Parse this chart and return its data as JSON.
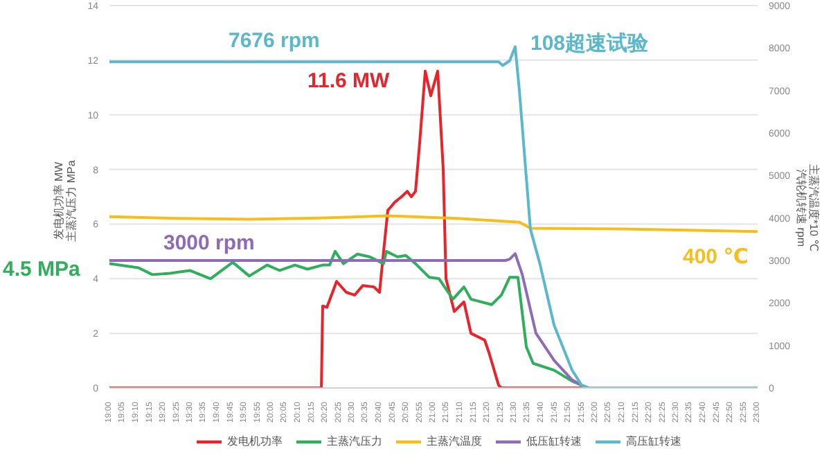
{
  "chart_data": {
    "type": "line",
    "ylabel": "发电机功率 MW\n主蒸汽压力 MPa",
    "y2label": "主蒸汽温度*10 ℃\n汽轮机转速 rpm",
    "xlim": [
      19,
      23
    ],
    "ylim": [
      0,
      14
    ],
    "yticks": [
      0,
      2,
      4,
      6,
      8,
      10,
      12,
      14
    ],
    "y2lim": [
      0,
      9000
    ],
    "y2ticks": [
      0,
      1000,
      2000,
      3000,
      4000,
      5000,
      6000,
      7000,
      8000,
      9000
    ],
    "xticks": [
      {
        "value": 19,
        "label": "19:00"
      },
      {
        "value": 19.0833,
        "label": "19:05"
      },
      {
        "value": 19.1667,
        "label": "19:10"
      },
      {
        "value": 19.25,
        "label": "19:15"
      },
      {
        "value": 19.3333,
        "label": "19:20"
      },
      {
        "value": 19.4167,
        "label": "19:25"
      },
      {
        "value": 19.5,
        "label": "19:30"
      },
      {
        "value": 19.5833,
        "label": "19:35"
      },
      {
        "value": 19.6667,
        "label": "19:40"
      },
      {
        "value": 19.75,
        "label": "19:45"
      },
      {
        "value": 19.8333,
        "label": "19:50"
      },
      {
        "value": 19.9167,
        "label": "19:55"
      },
      {
        "value": 20,
        "label": "20:00"
      },
      {
        "value": 20.0833,
        "label": "20:05"
      },
      {
        "value": 20.1667,
        "label": "20:10"
      },
      {
        "value": 20.25,
        "label": "20:15"
      },
      {
        "value": 20.3333,
        "label": "20:20"
      },
      {
        "value": 20.4167,
        "label": "20:25"
      },
      {
        "value": 20.5,
        "label": "20:30"
      },
      {
        "value": 20.5833,
        "label": "20:35"
      },
      {
        "value": 20.6667,
        "label": "20:40"
      },
      {
        "value": 20.75,
        "label": "20:45"
      },
      {
        "value": 20.8333,
        "label": "20:50"
      },
      {
        "value": 20.9167,
        "label": "20:55"
      },
      {
        "value": 21,
        "label": "21:00"
      },
      {
        "value": 21.0833,
        "label": "21:05"
      },
      {
        "value": 21.1667,
        "label": "21:10"
      },
      {
        "value": 21.25,
        "label": "21:15"
      },
      {
        "value": 21.3333,
        "label": "21:20"
      },
      {
        "value": 21.4167,
        "label": "21:25"
      },
      {
        "value": 21.5,
        "label": "21:30"
      },
      {
        "value": 21.5833,
        "label": "21:35"
      },
      {
        "value": 21.6667,
        "label": "21:40"
      },
      {
        "value": 21.75,
        "label": "21:45"
      },
      {
        "value": 21.8333,
        "label": "21:50"
      },
      {
        "value": 21.9167,
        "label": "21:55"
      },
      {
        "value": 22,
        "label": "22:00"
      },
      {
        "value": 22.0833,
        "label": "22:05"
      },
      {
        "value": 22.1667,
        "label": "22:10"
      },
      {
        "value": 22.25,
        "label": "22:15"
      },
      {
        "value": 22.3333,
        "label": "22:20"
      },
      {
        "value": 22.4167,
        "label": "22:25"
      },
      {
        "value": 22.5,
        "label": "22:30"
      },
      {
        "value": 22.5833,
        "label": "22:35"
      },
      {
        "value": 22.6667,
        "label": "22:40"
      },
      {
        "value": 22.75,
        "label": "22:45"
      },
      {
        "value": 22.8333,
        "label": "22:50"
      },
      {
        "value": 22.9167,
        "label": "22:55"
      },
      {
        "value": 23,
        "label": "23:00"
      }
    ],
    "grid": "y",
    "legend": "bottom",
    "marker": "none",
    "line_style": "solid",
    "series": [
      {
        "name": "发电机功率",
        "color": "#e8232a",
        "x": [
          19,
          20.308,
          20.316,
          20.342,
          20.402,
          20.462,
          20.513,
          20.564,
          20.632,
          20.667,
          20.692,
          20.718,
          20.761,
          20.803,
          20.838,
          20.863,
          20.889,
          20.915,
          20.949,
          20.983,
          21.026,
          21.06,
          21.077,
          21.128,
          21.188,
          21.231,
          21.316,
          21.342,
          21.402,
          21.419,
          23
        ],
        "values": [
          0,
          0,
          3.0,
          2.95,
          3.9,
          3.5,
          3.4,
          3.75,
          3.7,
          3.5,
          5.0,
          6.5,
          6.8,
          7.0,
          7.2,
          7.0,
          7.2,
          9.0,
          11.6,
          10.7,
          11.6,
          8.0,
          4.0,
          2.8,
          3.15,
          2.0,
          1.75,
          1.3,
          0.1,
          0,
          0
        ]
      },
      {
        "name": "主蒸汽压力",
        "color": "#2fae5c",
        "x": [
          19,
          19.179,
          19.265,
          19.376,
          19.496,
          19.624,
          19.761,
          19.863,
          19.974,
          20.051,
          20.145,
          20.222,
          20.316,
          20.359,
          20.393,
          20.444,
          20.53,
          20.607,
          20.692,
          20.709,
          20.778,
          20.829,
          20.889,
          20.974,
          21.034,
          21.12,
          21.188,
          21.231,
          21.359,
          21.419,
          21.47,
          21.521,
          21.573,
          21.615,
          21.744,
          21.855,
          21.915,
          21.957,
          23
        ],
        "values": [
          4.55,
          4.4,
          4.15,
          4.2,
          4.3,
          4.0,
          4.6,
          4.1,
          4.5,
          4.3,
          4.5,
          4.35,
          4.5,
          4.5,
          5.0,
          4.55,
          4.9,
          4.8,
          4.55,
          5.0,
          4.8,
          4.85,
          4.55,
          4.05,
          4.0,
          3.25,
          3.7,
          3.25,
          3.05,
          3.4,
          4.05,
          4.05,
          1.5,
          0.9,
          0.65,
          0.25,
          0.1,
          0,
          0
        ]
      },
      {
        "name": "主蒸汽温度",
        "color": "#f5be1b",
        "axis": "y2",
        "x": [
          19,
          19.436,
          19.863,
          20.291,
          20.718,
          21.145,
          21.53,
          21.598,
          22.171,
          23
        ],
        "values": [
          4030,
          3990,
          3970,
          4000,
          4050,
          3990,
          3900,
          3760,
          3740,
          3680
        ]
      },
      {
        "name": "低压缸转速",
        "color": "#8e6bb5",
        "axis": "y2",
        "x": [
          19,
          21.444,
          21.47,
          21.504,
          21.547,
          21.632,
          21.744,
          21.855,
          21.915,
          21.957,
          23
        ],
        "values": [
          3000,
          3000,
          3030,
          3160,
          2680,
          1290,
          650,
          190,
          60,
          0,
          0
        ]
      },
      {
        "name": "高压缸转速",
        "color": "#5bb8cc",
        "axis": "y2",
        "x": [
          19,
          21.402,
          21.427,
          21.47,
          21.504,
          21.53,
          21.598,
          21.658,
          21.744,
          21.855,
          21.915,
          21.957,
          23
        ],
        "values": [
          7676,
          7676,
          7590,
          7700,
          8030,
          7000,
          3740,
          2900,
          1480,
          420,
          60,
          0,
          0
        ]
      }
    ],
    "annotations": [
      "7676 rpm",
      "11.6 MW",
      "108超速试验",
      "3000 rpm",
      "4.5 MPa",
      "400 ℃"
    ]
  }
}
